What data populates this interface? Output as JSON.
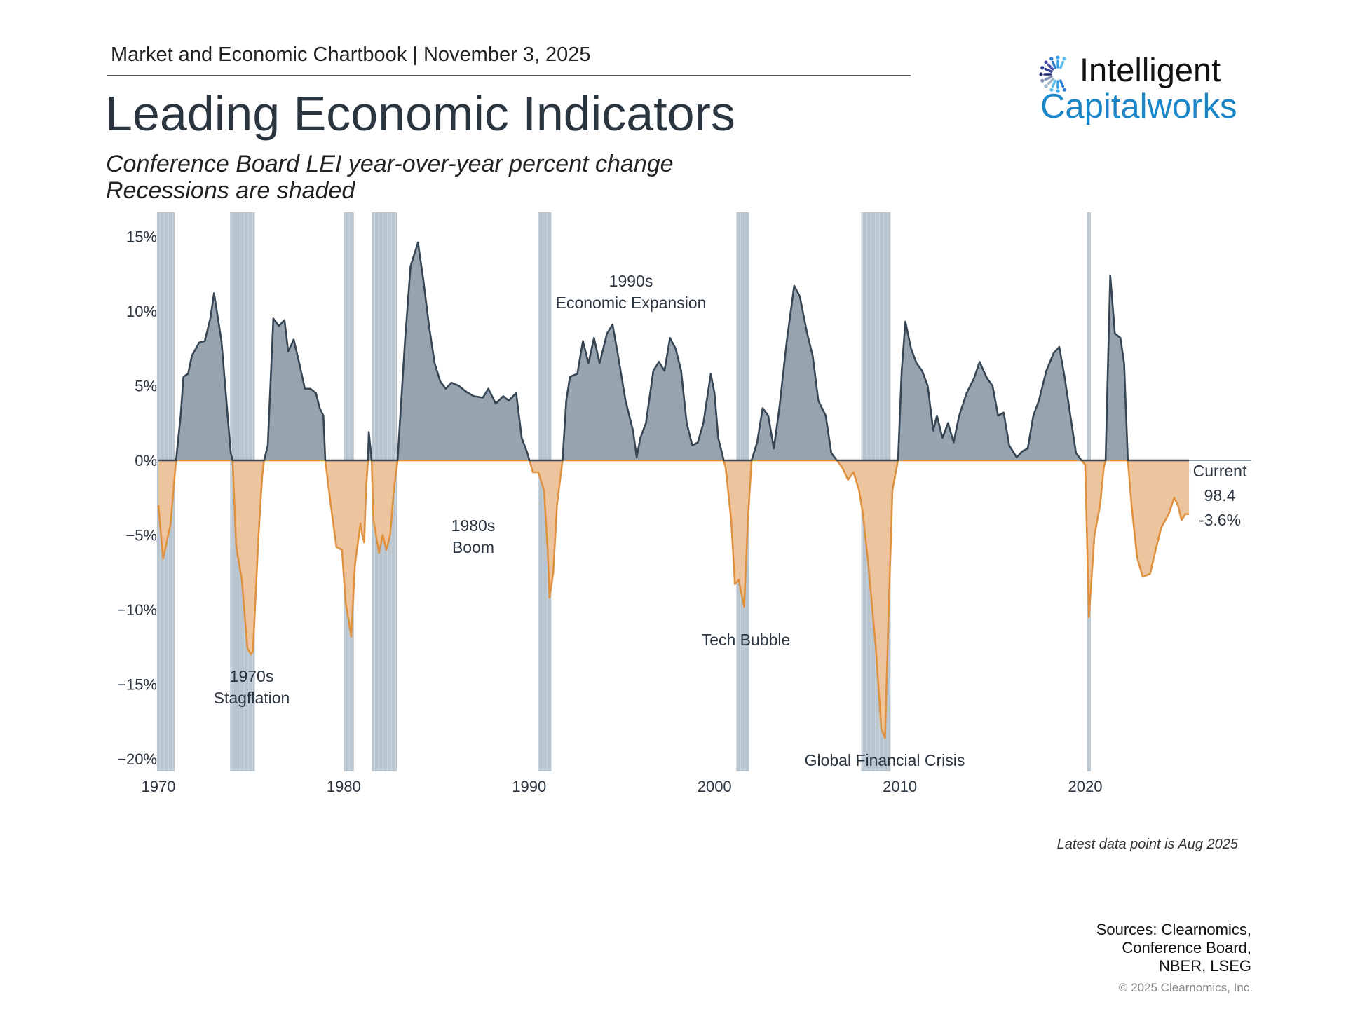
{
  "header": {
    "text": "Market and Economic Chartbook | November 3, 2025"
  },
  "title": "Leading Economic Indicators",
  "subtitle": [
    "Conference Board LEI year-over-year percent change",
    "Recessions are shaded"
  ],
  "logo": {
    "line1": "Intelligent",
    "line2": "Capitalworks",
    "colors": {
      "text1": "#111111",
      "text2": "#1a86c8"
    }
  },
  "chart_data": {
    "type": "area",
    "title": "",
    "xlabel": "",
    "ylabel": "",
    "xlim": [
      1970,
      2029
    ],
    "ylim": [
      -20,
      16.5
    ],
    "x_ticks": [
      1970,
      1980,
      1990,
      2000,
      2010,
      2020
    ],
    "x_tick_labels": [
      "1970",
      "1980",
      "1990",
      "2000",
      "2010",
      "2020"
    ],
    "y_ticks": [
      15,
      10,
      5,
      0,
      -5,
      -10,
      -15,
      -20
    ],
    "y_tick_labels": [
      "15%",
      "10%",
      "5%",
      "0%",
      "−5%",
      "−10%",
      "−15%",
      "−20%"
    ],
    "grid": false,
    "colors": {
      "positive_fill": "#97a3ae",
      "positive_line": "#364654",
      "negative_fill": "#ecc59e",
      "negative_line": "#e0913f",
      "recession": "#b9c6d0"
    },
    "recessions": [
      [
        1969.92,
        1970.87
      ],
      [
        1973.87,
        1975.2
      ],
      [
        1980.0,
        1980.55
      ],
      [
        1981.5,
        1982.87
      ],
      [
        1990.5,
        1991.2
      ],
      [
        2001.17,
        2001.87
      ],
      [
        2007.92,
        2009.5
      ],
      [
        2020.1,
        2020.3
      ]
    ],
    "series": [
      {
        "x": [
          1970.0,
          1970.25,
          1970.65,
          1970.95,
          1971.2,
          1971.35,
          1971.6,
          1971.8,
          1972.2,
          1972.5,
          1972.8,
          1973.0,
          1973.4,
          1973.6,
          1973.9,
          1974.0,
          1974.2,
          1974.5,
          1974.8,
          1975.0,
          1975.1,
          1975.4,
          1975.6,
          1975.7,
          1975.9,
          1976.2,
          1976.5,
          1976.8,
          1977.0,
          1977.3,
          1977.6,
          1977.9,
          1978.2,
          1978.5,
          1978.7,
          1978.9,
          1979.0,
          1979.3,
          1979.6,
          1979.9,
          1980.1,
          1980.4,
          1980.6,
          1980.9,
          1981.0,
          1981.1,
          1981.2,
          1981.3,
          1981.35,
          1981.5,
          1981.6,
          1981.9,
          1982.1,
          1982.3,
          1982.5,
          1982.7,
          1982.9,
          1983.0,
          1983.3,
          1983.6,
          1984.0,
          1984.3,
          1984.6,
          1984.9,
          1985.2,
          1985.5,
          1985.8,
          1986.2,
          1986.6,
          1987.0,
          1987.5,
          1987.8,
          1988.2,
          1988.6,
          1988.9,
          1989.3,
          1989.6,
          1989.9,
          1990.2,
          1990.5,
          1990.8,
          1991.0,
          1991.1,
          1991.3,
          1991.5,
          1991.8,
          1992.0,
          1992.2,
          1992.6,
          1992.9,
          1993.2,
          1993.5,
          1993.8,
          1994.2,
          1994.5,
          1994.8,
          1995.2,
          1995.6,
          1995.8,
          1996.0,
          1996.3,
          1996.7,
          1997.0,
          1997.3,
          1997.6,
          1997.9,
          1998.2,
          1998.5,
          1998.8,
          1999.1,
          1999.4,
          1999.8,
          2000.0,
          2000.2,
          2000.5,
          2000.6,
          2000.9,
          2001.1,
          2001.3,
          2001.6,
          2001.8,
          2002.0,
          2002.3,
          2002.6,
          2002.9,
          2003.2,
          2003.5,
          2003.9,
          2004.3,
          2004.6,
          2005.0,
          2005.3,
          2005.6,
          2006.0,
          2006.3,
          2006.6,
          2006.9,
          2007.2,
          2007.5,
          2007.8,
          2008.0,
          2008.3,
          2008.7,
          2009.0,
          2009.2,
          2009.4,
          2009.6,
          2009.9,
          2010.1,
          2010.3,
          2010.6,
          2010.9,
          2011.2,
          2011.5,
          2011.8,
          2012.0,
          2012.3,
          2012.6,
          2012.9,
          2013.2,
          2013.6,
          2014.0,
          2014.3,
          2014.7,
          2015.0,
          2015.3,
          2015.6,
          2015.9,
          2016.3,
          2016.6,
          2016.9,
          2017.2,
          2017.5,
          2017.9,
          2018.3,
          2018.6,
          2018.9,
          2019.2,
          2019.5,
          2019.8,
          2020.0,
          2020.2,
          2020.5,
          2020.8,
          2021.0,
          2021.1,
          2021.2,
          2021.35,
          2021.6,
          2021.9,
          2022.1,
          2022.3,
          2022.5,
          2022.8,
          2023.1,
          2023.5,
          2023.8,
          2024.1,
          2024.5,
          2024.8,
          2025.0,
          2025.2,
          2025.4,
          2025.6
        ],
        "y": [
          -3.0,
          -6.6,
          -4.3,
          0,
          3,
          5.6,
          5.8,
          7.0,
          7.9,
          8.0,
          9.5,
          11.2,
          8,
          5,
          0.5,
          0,
          -5.8,
          -8,
          -12.6,
          -13,
          -12.8,
          -5,
          -1,
          0,
          1,
          9.5,
          9,
          9.4,
          7.3,
          8.1,
          6.5,
          4.8,
          4.8,
          4.5,
          3.5,
          3,
          0,
          -3,
          -5.8,
          -6,
          -9.5,
          -11.8,
          -7,
          -4.2,
          -5,
          -5.5,
          -2,
          0,
          1.9,
          0,
          -4,
          -6.2,
          -5,
          -6,
          -5,
          -2,
          0,
          2,
          8,
          13,
          14.6,
          12,
          9,
          6.5,
          5.3,
          4.8,
          5.2,
          5,
          4.6,
          4.3,
          4.2,
          4.8,
          3.8,
          4.3,
          4,
          4.5,
          1.5,
          0.5,
          -0.8,
          -0.8,
          -2,
          -6,
          -9.2,
          -7.5,
          -3,
          0,
          4,
          5.6,
          5.8,
          8,
          6.5,
          8.2,
          6.5,
          8.5,
          9.1,
          7,
          4,
          2,
          0.2,
          1.5,
          2.5,
          6,
          6.6,
          6,
          8.2,
          7.5,
          6,
          2.5,
          1,
          1.2,
          2.5,
          5.8,
          4.5,
          1.5,
          0,
          -0.5,
          -4,
          -8.3,
          -8,
          -9.8,
          -4,
          0,
          1.2,
          3.5,
          3,
          0.8,
          3.5,
          8,
          11.7,
          11,
          8.5,
          7,
          4,
          3,
          0.5,
          0,
          -0.5,
          -1.3,
          -0.8,
          -2.0,
          -3.5,
          -7,
          -12.5,
          -18,
          -18.6,
          -10,
          -2,
          0,
          6,
          9.3,
          7.5,
          6.5,
          6,
          5,
          2,
          3,
          1.5,
          2.5,
          1.2,
          3,
          4.5,
          5.5,
          6.6,
          5.5,
          5,
          3,
          3.2,
          1,
          0.2,
          0.6,
          0.8,
          3,
          4,
          6,
          7.2,
          7.6,
          5.5,
          3,
          0.5,
          0,
          -0.3,
          -10.5,
          -5,
          -3,
          -0.5,
          0,
          5,
          12.4,
          8.5,
          8.2,
          6.5,
          0,
          -3,
          -6.5,
          -7.8,
          -7.6,
          -6,
          -4.5,
          -3.6,
          -2.5,
          -3,
          -4,
          -3.6,
          -3.6
        ]
      }
    ],
    "annotations": [
      {
        "label": [
          "1970s",
          "Stagflation"
        ]
      },
      {
        "label": [
          "1980s",
          "Boom"
        ]
      },
      {
        "label": [
          "1990s",
          "Economic Expansion"
        ]
      },
      {
        "label": [
          "Tech Bubble"
        ]
      },
      {
        "label": [
          "Global Financial Crisis"
        ]
      },
      {
        "label": [
          "Current",
          "98.4",
          "-3.6%"
        ]
      }
    ]
  },
  "footer": {
    "latest": "Latest data point is Aug 2025",
    "sources": [
      "Sources: Clearnomics,",
      "Conference Board,",
      "NBER, LSEG"
    ],
    "copyright": "© 2025 Clearnomics, Inc."
  }
}
